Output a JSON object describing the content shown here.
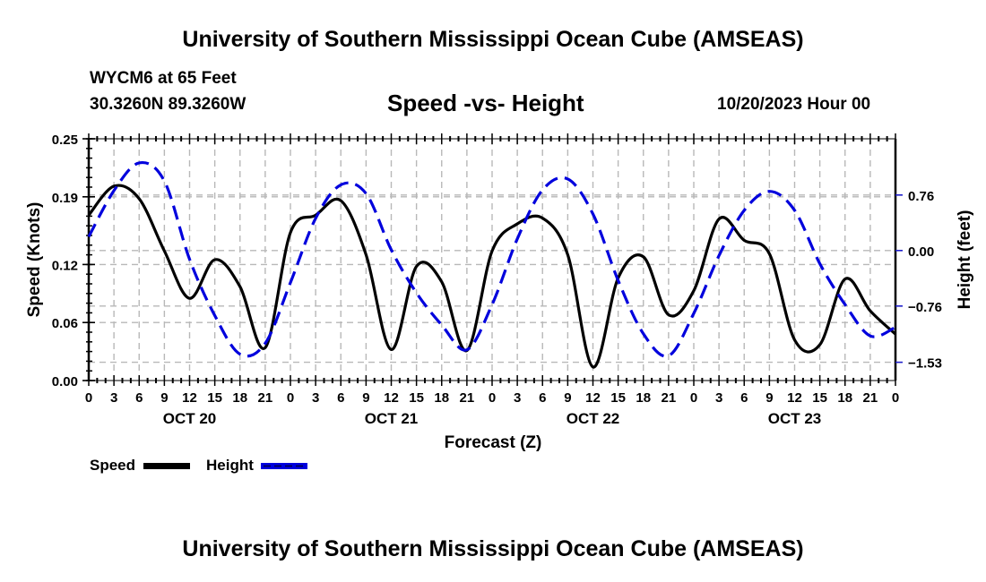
{
  "header": {
    "title_top": "University of Southern Mississippi Ocean Cube (AMSEAS)",
    "station": "WYCM6 at 65 Feet",
    "coords": "30.3260N  89.3260W",
    "datetime": "10/20/2023 Hour 00",
    "title_bottom": "University of Southern Mississippi Ocean Cube (AMSEAS)"
  },
  "legend": {
    "speed_label": "Speed",
    "height_label": "Height"
  },
  "chart_data": {
    "type": "line",
    "title": "Speed -vs- Height",
    "xlabel": "Forecast (Z)",
    "ylabel": "Speed (Knots)",
    "ylabel_right": "Height (feet)",
    "x_unit": "forecast hour from 10/20/2023 00Z",
    "xlim": [
      0,
      96
    ],
    "x_tick_labels": [
      "0",
      "3",
      "6",
      "9",
      "12",
      "15",
      "18",
      "21",
      "0",
      "3",
      "6",
      "9",
      "12",
      "15",
      "18",
      "21",
      "0",
      "3",
      "6",
      "9",
      "12",
      "15",
      "18",
      "21",
      "0",
      "3",
      "6",
      "9",
      "12",
      "15",
      "18",
      "21",
      "0"
    ],
    "day_labels": [
      "OCT 20",
      "OCT 21",
      "OCT 22",
      "OCT 23"
    ],
    "ylim": [
      0,
      0.25
    ],
    "y_ticks": [
      0.0,
      0.06,
      0.12,
      0.19,
      0.25
    ],
    "y_tick_labels": [
      "0.00",
      "0.06",
      "0.12",
      "0.19",
      "0.25"
    ],
    "ylim_right": [
      -1.78,
      1.53
    ],
    "y_ticks_right": [
      0.76,
      0.0,
      -0.76,
      -1.53
    ],
    "y_tick_labels_right": [
      "0.76",
      "0.00",
      "−0.76",
      "−1.53"
    ],
    "grid": true,
    "legend_position": "bottom-left",
    "x": [
      0,
      3,
      6,
      9,
      12,
      15,
      18,
      21,
      24,
      27,
      30,
      33,
      36,
      39,
      42,
      45,
      48,
      51,
      54,
      57,
      60,
      63,
      66,
      69,
      72,
      75,
      78,
      81,
      84,
      87,
      90,
      93,
      96
    ],
    "series": [
      {
        "name": "Speed",
        "axis": "left",
        "color": "#000000",
        "style": "solid",
        "values": [
          0.171,
          0.201,
          0.188,
          0.134,
          0.085,
          0.125,
          0.097,
          0.034,
          0.153,
          0.171,
          0.186,
          0.13,
          0.032,
          0.118,
          0.102,
          0.031,
          0.134,
          0.162,
          0.168,
          0.13,
          0.014,
          0.106,
          0.128,
          0.068,
          0.093,
          0.167,
          0.145,
          0.131,
          0.042,
          0.037,
          0.105,
          0.072,
          0.048
        ]
      },
      {
        "name": "Height",
        "axis": "right",
        "color": "#0000dd",
        "style": "dashed",
        "values": [
          0.19,
          0.82,
          1.2,
          0.95,
          -0.12,
          -0.89,
          -1.42,
          -1.27,
          -0.44,
          0.44,
          0.9,
          0.78,
          0.01,
          -0.58,
          -1.02,
          -1.36,
          -0.74,
          0.16,
          0.83,
          0.98,
          0.5,
          -0.41,
          -1.14,
          -1.44,
          -0.86,
          -0.07,
          0.55,
          0.81,
          0.55,
          -0.18,
          -0.74,
          -1.17,
          -1.05
        ]
      }
    ]
  }
}
